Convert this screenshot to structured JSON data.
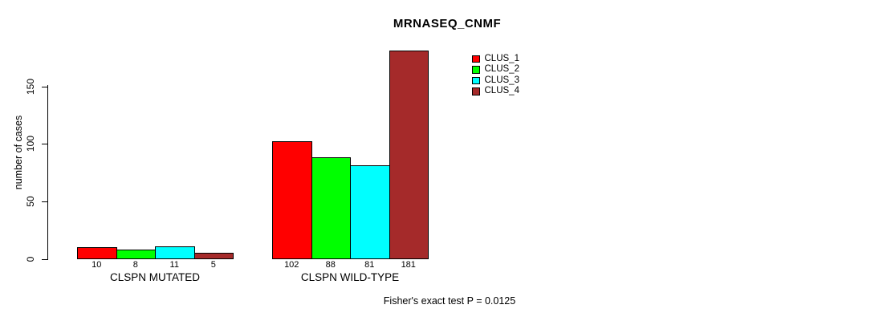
{
  "chart_data": {
    "type": "bar",
    "title": "MRNASEQ_CNMF",
    "xlabel": "",
    "ylabel": "number of cases",
    "categories": [
      "CLSPN MUTATED",
      "CLSPN WILD-TYPE"
    ],
    "series": [
      {
        "name": "CLUS_1",
        "color": "#ff0000",
        "values": [
          10,
          102
        ]
      },
      {
        "name": "CLUS_2",
        "color": "#00ff00",
        "values": [
          8,
          88
        ]
      },
      {
        "name": "CLUS_3",
        "color": "#00ffff",
        "values": [
          11,
          81
        ]
      },
      {
        "name": "CLUS_4",
        "color": "#a52a2a",
        "values": [
          5,
          181
        ]
      }
    ],
    "bar_value_labels": [
      [
        "10",
        "8",
        "11",
        "5"
      ],
      [
        "102",
        "88",
        "81",
        "181"
      ]
    ],
    "yticks": [
      0,
      50,
      100,
      150
    ],
    "ylim": [
      0,
      181
    ],
    "grid": false,
    "legend_position": "top-right",
    "legend_entries": [
      "CLUS_1",
      "CLUS_2",
      "CLUS_3",
      "CLUS_4"
    ],
    "annotation": "Fisher's exact test P = 0.0125",
    "background_color": "#ffffff",
    "axis_color": "#000000"
  }
}
